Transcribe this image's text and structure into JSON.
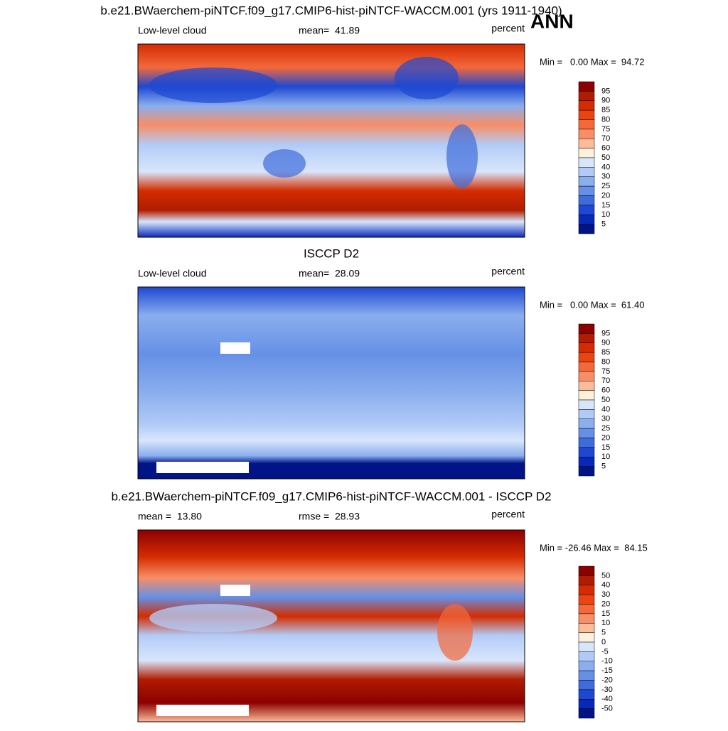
{
  "season": "ANN",
  "panels": [
    {
      "title": "b.e21.BWaerchem-piNTCF.f09_g17.CMIP6-hist-piNTCF-WACCM.001 (yrs 1911-1940)",
      "left": "Low-level cloud",
      "center": "mean=  41.89",
      "right": "percent",
      "minmax": "Min =   0.00 Max =  94.72",
      "colorbar": {
        "labels": [
          95,
          90,
          85,
          80,
          75,
          70,
          60,
          50,
          40,
          30,
          25,
          20,
          15,
          10,
          5
        ],
        "colors": [
          "#8c0000",
          "#b01c00",
          "#d42c00",
          "#ec4410",
          "#f4683a",
          "#f98e66",
          "#fcbb99",
          "#fff0dc",
          "#d8e6fc",
          "#b2cbf6",
          "#8aaeee",
          "#6590e6",
          "#3e6cdc",
          "#1e48d2",
          "#0828b8",
          "#001488"
        ]
      }
    },
    {
      "title": "ISCCP D2",
      "left": "Low-level cloud",
      "center": "mean=  28.09",
      "right": "percent",
      "minmax": "Min =   0.00 Max =  61.40",
      "colorbar": {
        "labels": [
          95,
          90,
          85,
          80,
          75,
          70,
          60,
          50,
          40,
          30,
          25,
          20,
          15,
          10,
          5
        ],
        "colors": [
          "#8c0000",
          "#b01c00",
          "#d42c00",
          "#ec4410",
          "#f4683a",
          "#f98e66",
          "#fcbb99",
          "#fff0dc",
          "#d8e6fc",
          "#b2cbf6",
          "#8aaeee",
          "#6590e6",
          "#3e6cdc",
          "#1e48d2",
          "#0828b8",
          "#001488"
        ]
      }
    },
    {
      "title": "b.e21.BWaerchem-piNTCF.f09_g17.CMIP6-hist-piNTCF-WACCM.001 - ISCCP D2",
      "left": "mean =  13.80",
      "center": "rmse =  28.93",
      "right": "percent",
      "minmax": "Min = -26.46 Max =  84.15",
      "colorbar": {
        "labels": [
          50,
          40,
          30,
          20,
          15,
          10,
          5,
          0,
          -5,
          -10,
          -15,
          -20,
          -30,
          -40,
          -50
        ],
        "colors": [
          "#8c0000",
          "#b01c00",
          "#d42c00",
          "#ec4410",
          "#f4683a",
          "#f98e66",
          "#fcbb99",
          "#fff0dc",
          "#d8e6fc",
          "#b2cbf6",
          "#8aaeee",
          "#6590e6",
          "#3e6cdc",
          "#1e48d2",
          "#0828b8",
          "#001488"
        ]
      }
    }
  ]
}
